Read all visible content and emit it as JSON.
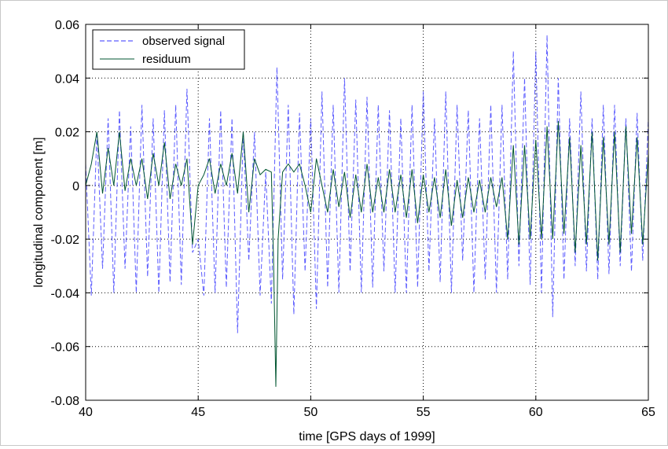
{
  "chart_data": {
    "type": "line",
    "title": "",
    "xlabel": "time [GPS days of 1999]",
    "ylabel": "longitudinal component [m]",
    "xlim": [
      40,
      65
    ],
    "ylim": [
      -0.08,
      0.06
    ],
    "xticks": [
      "40",
      "45",
      "50",
      "55",
      "60",
      "65"
    ],
    "yticks": [
      "0.06",
      "0.04",
      "0.02",
      "0",
      "-0.02",
      "-0.04",
      "-0.06",
      "-0.08"
    ],
    "grid": true,
    "legend_position": "top-left",
    "series": [
      {
        "name": "observed signal",
        "color": "#3333ff",
        "style": "dashed",
        "x": [
          40.0,
          40.25,
          40.5,
          40.75,
          41.0,
          41.25,
          41.5,
          41.75,
          42.0,
          42.25,
          42.5,
          42.75,
          43.0,
          43.25,
          43.5,
          43.75,
          44.0,
          44.25,
          44.5,
          44.75,
          45.0,
          45.25,
          45.5,
          45.75,
          46.0,
          46.25,
          46.5,
          46.75,
          47.0,
          47.25,
          47.5,
          47.75,
          48.0,
          48.25,
          48.5,
          48.75,
          49.0,
          49.25,
          49.5,
          49.75,
          50.0,
          50.25,
          50.5,
          50.75,
          51.0,
          51.25,
          51.5,
          51.75,
          52.0,
          52.25,
          52.5,
          52.75,
          53.0,
          53.25,
          53.5,
          53.75,
          54.0,
          54.25,
          54.5,
          54.75,
          55.0,
          55.25,
          55.5,
          55.75,
          56.0,
          56.25,
          56.5,
          56.75,
          57.0,
          57.25,
          57.5,
          57.75,
          58.0,
          58.25,
          58.5,
          58.75,
          59.0,
          59.25,
          59.5,
          59.75,
          60.0,
          60.25,
          60.5,
          60.75,
          61.0,
          61.25,
          61.5,
          61.75,
          62.0,
          62.25,
          62.5,
          62.75,
          63.0,
          63.25,
          63.5,
          63.75,
          64.0,
          64.25,
          64.5,
          64.75,
          65.0
        ],
        "values": [
          0.008,
          -0.041,
          0.02,
          -0.031,
          0.025,
          -0.04,
          0.028,
          -0.031,
          0.022,
          -0.04,
          0.03,
          -0.034,
          0.025,
          -0.04,
          0.028,
          -0.036,
          0.03,
          -0.037,
          0.036,
          -0.025,
          -0.02,
          -0.041,
          0.025,
          -0.04,
          0.028,
          -0.038,
          0.025,
          -0.055,
          0.02,
          -0.028,
          0.02,
          -0.041,
          0.005,
          -0.044,
          0.044,
          -0.035,
          0.03,
          -0.048,
          0.027,
          -0.032,
          0.025,
          -0.046,
          0.035,
          -0.038,
          0.03,
          -0.04,
          0.04,
          -0.032,
          0.032,
          -0.04,
          0.033,
          -0.038,
          0.03,
          -0.032,
          0.028,
          -0.04,
          0.025,
          -0.04,
          0.03,
          -0.038,
          0.035,
          -0.032,
          0.025,
          -0.036,
          0.035,
          -0.04,
          0.03,
          -0.028,
          0.028,
          -0.04,
          0.025,
          -0.035,
          0.03,
          -0.04,
          0.03,
          -0.035,
          0.05,
          -0.03,
          0.04,
          -0.037,
          0.05,
          -0.04,
          0.056,
          -0.049,
          0.04,
          -0.035,
          0.025,
          -0.03,
          0.035,
          -0.032,
          0.025,
          -0.035,
          0.03,
          -0.033,
          0.03,
          -0.03,
          0.025,
          -0.032,
          0.027,
          -0.028,
          0.025
        ]
      },
      {
        "name": "residuum",
        "color": "#005530",
        "style": "solid",
        "x": [
          40.0,
          40.25,
          40.5,
          40.75,
          41.0,
          41.25,
          41.5,
          41.75,
          42.0,
          42.25,
          42.5,
          42.75,
          43.0,
          43.25,
          43.5,
          43.75,
          44.0,
          44.25,
          44.5,
          44.75,
          45.0,
          45.25,
          45.5,
          45.75,
          46.0,
          46.25,
          46.5,
          46.75,
          47.0,
          47.25,
          47.5,
          47.75,
          48.0,
          48.25,
          48.35,
          48.45,
          48.55,
          48.75,
          49.0,
          49.25,
          49.5,
          49.75,
          50.0,
          50.25,
          50.5,
          50.75,
          51.0,
          51.25,
          51.5,
          51.75,
          52.0,
          52.25,
          52.5,
          52.75,
          53.0,
          53.25,
          53.5,
          53.75,
          54.0,
          54.25,
          54.5,
          54.75,
          55.0,
          55.25,
          55.5,
          55.75,
          56.0,
          56.25,
          56.5,
          56.75,
          57.0,
          57.25,
          57.5,
          57.75,
          58.0,
          58.25,
          58.5,
          58.75,
          59.0,
          59.25,
          59.5,
          59.75,
          60.0,
          60.25,
          60.5,
          60.75,
          61.0,
          61.25,
          61.5,
          61.75,
          62.0,
          62.25,
          62.5,
          62.75,
          63.0,
          63.25,
          63.5,
          63.75,
          64.0,
          64.25,
          64.5,
          64.75,
          65.0
        ],
        "values": [
          0.0,
          0.008,
          0.02,
          -0.003,
          0.014,
          0.0,
          0.02,
          -0.002,
          0.01,
          0.0,
          0.01,
          -0.005,
          0.012,
          0.0,
          0.016,
          -0.005,
          0.008,
          0.0,
          0.01,
          -0.022,
          0.0,
          0.004,
          0.01,
          -0.003,
          0.008,
          0.0,
          0.012,
          -0.003,
          0.02,
          -0.01,
          0.01,
          0.004,
          0.006,
          0.005,
          -0.028,
          -0.075,
          -0.02,
          0.005,
          0.008,
          0.005,
          0.008,
          0.0,
          -0.01,
          0.01,
          0.0,
          -0.01,
          0.006,
          -0.008,
          0.005,
          -0.012,
          0.004,
          -0.01,
          0.008,
          -0.01,
          0.003,
          -0.01,
          0.006,
          -0.01,
          0.004,
          -0.012,
          0.006,
          -0.014,
          0.004,
          -0.01,
          0.003,
          -0.012,
          0.006,
          -0.015,
          0.002,
          -0.012,
          0.003,
          -0.01,
          0.002,
          -0.01,
          0.003,
          -0.008,
          0.003,
          -0.02,
          0.015,
          -0.022,
          0.015,
          -0.02,
          0.017,
          -0.02,
          0.022,
          -0.02,
          0.024,
          -0.018,
          0.018,
          -0.025,
          0.015,
          -0.022,
          0.02,
          -0.028,
          0.018,
          -0.022,
          0.02,
          -0.025,
          0.022,
          -0.018,
          0.018,
          -0.022,
          0.012
        ]
      }
    ]
  }
}
